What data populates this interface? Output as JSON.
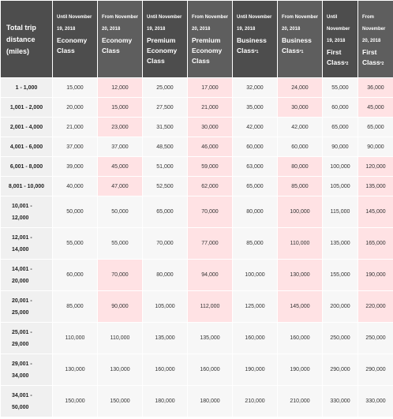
{
  "header": {
    "distance_label": "Total trip distance (miles)",
    "columns": [
      {
        "period": "Until November 19, 2018",
        "cls": "Economy Class",
        "sup": ""
      },
      {
        "period": "From November 20, 2018",
        "cls": "Economy Class",
        "sup": ""
      },
      {
        "period": "Until November 19, 2018",
        "cls": "Premium Economy Class",
        "sup": ""
      },
      {
        "period": "From November 20, 2018",
        "cls": "Premium Economy Class",
        "sup": ""
      },
      {
        "period": "Until November 19, 2018",
        "cls": "Business Class",
        "sup": "*1"
      },
      {
        "period": "From November 20, 2018",
        "cls": "Business Class",
        "sup": "*1"
      },
      {
        "period": "Until November 19, 2018",
        "cls": "First Class",
        "sup": "*2"
      },
      {
        "period": "From November 20, 2018",
        "cls": "First Class",
        "sup": "*2"
      }
    ]
  },
  "rows": [
    {
      "range": "1 - 1,000",
      "values": [
        "15,000",
        "12,000",
        "25,000",
        "17,000",
        "32,000",
        "24,000",
        "55,000",
        "36,000"
      ]
    },
    {
      "range": "1,001 - 2,000",
      "values": [
        "20,000",
        "15,000",
        "27,500",
        "21,000",
        "35,000",
        "30,000",
        "60,000",
        "45,000"
      ]
    },
    {
      "range": "2,001 - 4,000",
      "values": [
        "21,000",
        "23,000",
        "31,500",
        "30,000",
        "42,000",
        "42,000",
        "65,000",
        "65,000"
      ]
    },
    {
      "range": "4,001 - 6,000",
      "values": [
        "37,000",
        "37,000",
        "48,500",
        "46,000",
        "60,000",
        "60,000",
        "90,000",
        "90,000"
      ]
    },
    {
      "range": "6,001 - 8,000",
      "values": [
        "39,000",
        "45,000",
        "51,000",
        "59,000",
        "63,000",
        "80,000",
        "100,000",
        "120,000"
      ]
    },
    {
      "range": "8,001 - 10,000",
      "values": [
        "40,000",
        "47,000",
        "52,500",
        "62,000",
        "65,000",
        "85,000",
        "105,000",
        "135,000"
      ]
    },
    {
      "range_a": "10,001 -",
      "range_b": "12,000",
      "values": [
        "50,000",
        "50,000",
        "65,000",
        "70,000",
        "80,000",
        "100,000",
        "115,000",
        "145,000"
      ]
    },
    {
      "range_a": "12,001 -",
      "range_b": "14,000",
      "values": [
        "55,000",
        "55,000",
        "70,000",
        "77,000",
        "85,000",
        "110,000",
        "135,000",
        "165,000"
      ]
    },
    {
      "range_a": "14,001 -",
      "range_b": "20,000",
      "values": [
        "60,000",
        "70,000",
        "80,000",
        "94,000",
        "100,000",
        "130,000",
        "155,000",
        "190,000"
      ]
    },
    {
      "range_a": "20,001 -",
      "range_b": "25,000",
      "values": [
        "85,000",
        "90,000",
        "105,000",
        "112,000",
        "125,000",
        "145,000",
        "200,000",
        "220,000"
      ]
    },
    {
      "range_a": "25,001 -",
      "range_b": "29,000",
      "values": [
        "110,000",
        "110,000",
        "135,000",
        "135,000",
        "160,000",
        "160,000",
        "250,000",
        "250,000"
      ]
    },
    {
      "range_a": "29,001 -",
      "range_b": "34,000",
      "values": [
        "130,000",
        "130,000",
        "160,000",
        "160,000",
        "190,000",
        "190,000",
        "290,000",
        "290,000"
      ]
    },
    {
      "range_a": "34,001 -",
      "range_b": "50,000",
      "values": [
        "150,000",
        "150,000",
        "180,000",
        "180,000",
        "210,000",
        "210,000",
        "330,000",
        "330,000"
      ]
    }
  ]
}
